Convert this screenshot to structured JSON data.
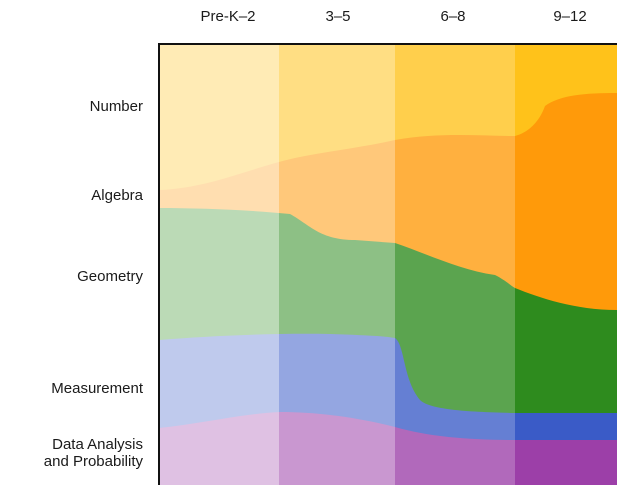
{
  "grade_bands": [
    "Pre-K–2",
    "3–5",
    "6–8",
    "9–12"
  ],
  "strands": [
    {
      "label": "Number",
      "color": "#FFB300"
    },
    {
      "label": "Algebra",
      "color": "#FF9800"
    },
    {
      "label": "Geometry",
      "color": "#2E8B1E"
    },
    {
      "label": "Measurement",
      "color": "#3A5BC7"
    },
    {
      "label": "Data Analysis\nand Probability",
      "color": "#9C3FA8"
    }
  ]
}
